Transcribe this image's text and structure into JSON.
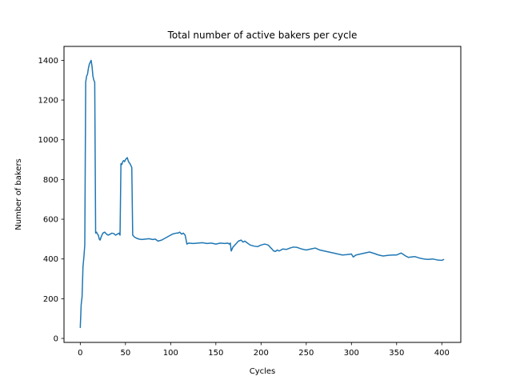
{
  "chart_data": {
    "type": "line",
    "title": "Total number of active bakers per cycle",
    "xlabel": "Cycles",
    "ylabel": "Number of bakers",
    "xlim": [
      -18,
      421
    ],
    "ylim": [
      -20,
      1470
    ],
    "xticks": [
      "0",
      "50",
      "100",
      "150",
      "200",
      "250",
      "300",
      "350",
      "400"
    ],
    "yticks": [
      "0",
      "200",
      "400",
      "600",
      "800",
      "1000",
      "1200",
      "1400"
    ],
    "xtick_values": [
      0,
      50,
      100,
      150,
      200,
      250,
      300,
      350,
      400
    ],
    "ytick_values": [
      0,
      200,
      400,
      600,
      800,
      1000,
      1200,
      1400
    ],
    "grid": false,
    "line_color": "#1f77b4",
    "series": [
      {
        "x": [
          0,
          1,
          2,
          3,
          4,
          5,
          6,
          7,
          8,
          9,
          10,
          11,
          12,
          13,
          14,
          15,
          16,
          17,
          18,
          19,
          20,
          21,
          22,
          23,
          25,
          27,
          29,
          31,
          33,
          35,
          37,
          39,
          41,
          43,
          44,
          45,
          46,
          47,
          48,
          49,
          50,
          51,
          52,
          53,
          54,
          55,
          56,
          57,
          58,
          60,
          62,
          65,
          68,
          72,
          76,
          80,
          83,
          86,
          90,
          94,
          98,
          102,
          106,
          108,
          110,
          112,
          114,
          116,
          118,
          120,
          125,
          130,
          135,
          140,
          145,
          150,
          155,
          160,
          163,
          165,
          166,
          167,
          169,
          171,
          173,
          175,
          178,
          180,
          182,
          185,
          188,
          192,
          196,
          200,
          204,
          208,
          210,
          212,
          214,
          216,
          218,
          220,
          224,
          228,
          232,
          236,
          240,
          245,
          250,
          255,
          260,
          265,
          270,
          275,
          280,
          285,
          290,
          295,
          300,
          302,
          305,
          310,
          315,
          320,
          325,
          330,
          335,
          340,
          345,
          350,
          355,
          360,
          363,
          366,
          370,
          375,
          380,
          385,
          390,
          395,
          400,
          402
        ],
        "y": [
          55,
          170,
          210,
          360,
          410,
          470,
          1290,
          1320,
          1330,
          1360,
          1380,
          1390,
          1400,
          1370,
          1320,
          1300,
          1290,
          530,
          535,
          525,
          520,
          500,
          495,
          510,
          530,
          535,
          525,
          520,
          525,
          530,
          528,
          520,
          525,
          530,
          520,
          880,
          875,
          890,
          895,
          890,
          900,
          905,
          910,
          895,
          885,
          880,
          870,
          860,
          520,
          510,
          505,
          500,
          498,
          500,
          502,
          498,
          500,
          490,
          495,
          505,
          515,
          525,
          530,
          530,
          535,
          525,
          530,
          520,
          475,
          480,
          478,
          480,
          482,
          478,
          480,
          475,
          480,
          478,
          480,
          475,
          480,
          440,
          460,
          470,
          480,
          490,
          495,
          485,
          490,
          480,
          470,
          465,
          462,
          470,
          475,
          470,
          460,
          450,
          440,
          438,
          445,
          440,
          450,
          448,
          455,
          460,
          458,
          450,
          445,
          450,
          455,
          445,
          440,
          435,
          430,
          425,
          420,
          422,
          425,
          410,
          420,
          425,
          430,
          435,
          428,
          420,
          415,
          418,
          420,
          420,
          430,
          415,
          408,
          410,
          412,
          405,
          400,
          398,
          400,
          395,
          393,
          397
        ]
      }
    ]
  }
}
